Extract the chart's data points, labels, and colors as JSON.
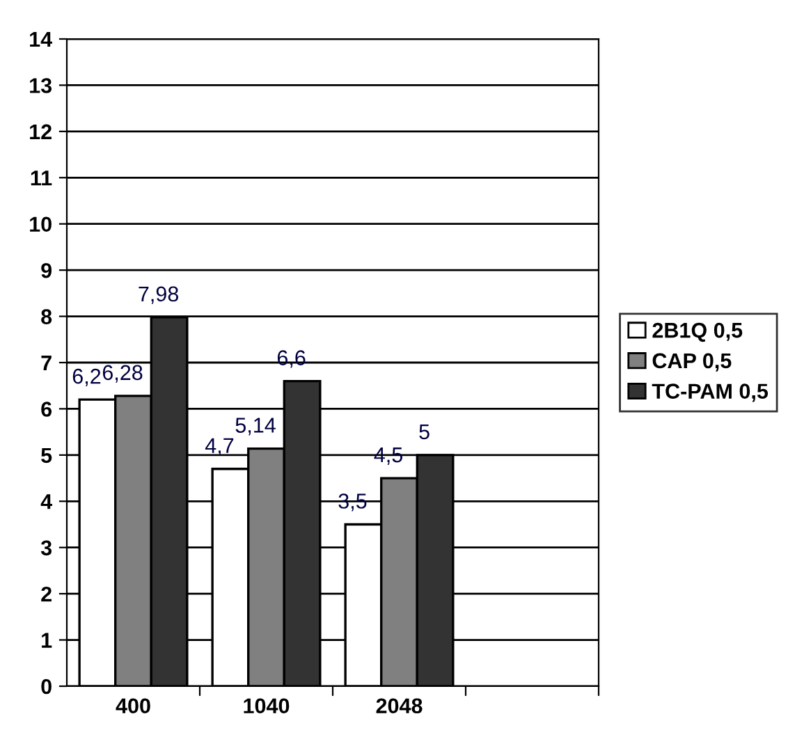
{
  "chart_data": {
    "type": "bar",
    "categories": [
      "400",
      "1040",
      "2048",
      null
    ],
    "series": [
      {
        "name": "2B1Q 0,5",
        "color": "#ffffff",
        "values": [
          6.2,
          4.7,
          3.5,
          null
        ],
        "value_labels": [
          "6,2",
          "4,7",
          "3,5",
          null
        ]
      },
      {
        "name": "CAP 0,5",
        "color": "#808080",
        "values": [
          6.28,
          5.14,
          4.5,
          null
        ],
        "value_labels": [
          "6,28",
          "5,14",
          "4,5",
          null
        ]
      },
      {
        "name": "TC-PAM 0,5",
        "color": "#333333",
        "values": [
          7.98,
          6.6,
          5,
          null
        ],
        "value_labels": [
          "7,98",
          "6,6",
          "5",
          null
        ]
      }
    ],
    "ylim": [
      0,
      14
    ],
    "yticks": [
      0,
      1,
      2,
      3,
      4,
      5,
      6,
      7,
      8,
      9,
      10,
      11,
      12,
      13,
      14
    ],
    "grid": "y",
    "legend": "right"
  }
}
